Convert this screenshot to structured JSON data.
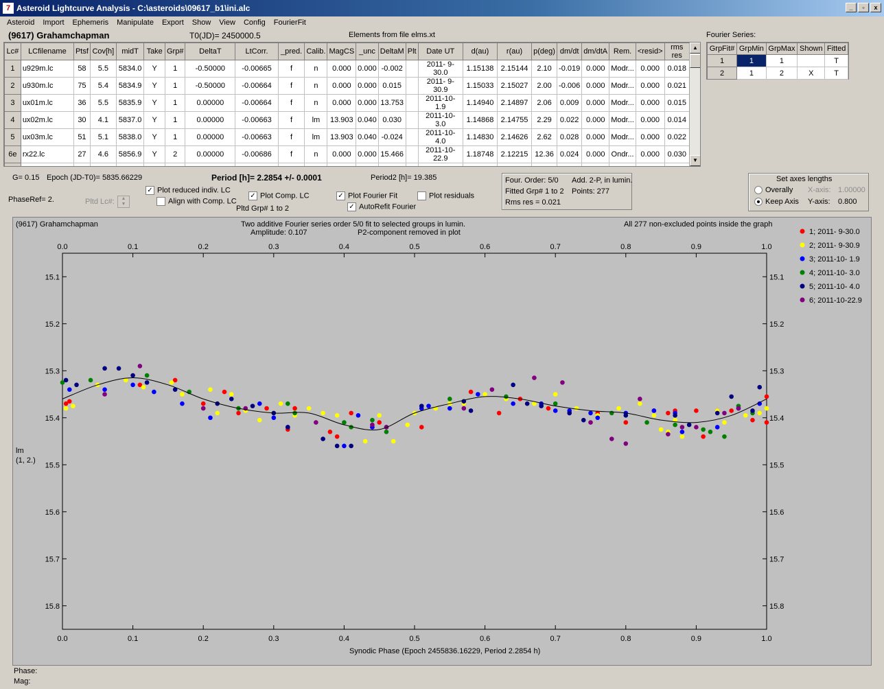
{
  "window": {
    "title": "Asteroid Lightcurve Analysis - C:\\asteroids\\09617_b1\\ini.alc",
    "icon": "app-icon",
    "buttons": [
      "_",
      "▫",
      "x"
    ]
  },
  "menu": [
    "Asteroid",
    "Import",
    "Ephemeris",
    "Manipulate",
    "Export",
    "Show",
    "View",
    "Config",
    "FourierFit"
  ],
  "header": {
    "asteroid": "(9617) Grahamchapman",
    "t0": "T0(JD)= 2450000.5",
    "elements": "Elements from file elms.xt"
  },
  "lc_table": {
    "columns": [
      "Lc#",
      "LCfilename",
      "Ptsf",
      "Cov[h]",
      "midT",
      "Take",
      "Grp#",
      "DeltaT",
      "LtCorr.",
      "_pred.",
      "Calib.",
      "MagCS",
      "_unc",
      "DeltaM",
      "Plt",
      "Date UT",
      "d(au)",
      "r(au)",
      "p(deg)",
      "dm/dt",
      "dm/dtA",
      "Rem.",
      "<resid>",
      "rms res"
    ],
    "rows": [
      [
        "1",
        "u929m.lc",
        "58",
        "5.5",
        "5834.0",
        "Y",
        "1",
        "-0.50000",
        "-0.00665",
        "f",
        "n",
        "0.000",
        "0.000",
        "-0.002",
        "",
        "2011- 9-30.0",
        "1.15138",
        "2.15144",
        "2.10",
        "-0.019",
        "0.000",
        "Modr...",
        "0.000",
        "0.018"
      ],
      [
        "2",
        "u930m.lc",
        "75",
        "5.4",
        "5834.9",
        "Y",
        "1",
        "-0.50000",
        "-0.00664",
        "f",
        "n",
        "0.000",
        "0.000",
        "0.015",
        "",
        "2011- 9-30.9",
        "1.15033",
        "2.15027",
        "2.00",
        "-0.006",
        "0.000",
        "Modr...",
        "0.000",
        "0.021"
      ],
      [
        "3",
        "ux01m.lc",
        "36",
        "5.5",
        "5835.9",
        "Y",
        "1",
        "0.00000",
        "-0.00664",
        "f",
        "n",
        "0.000",
        "0.000",
        "13.753",
        "",
        "2011-10- 1.9",
        "1.14940",
        "2.14897",
        "2.06",
        "0.009",
        "0.000",
        "Modr...",
        "0.000",
        "0.015"
      ],
      [
        "4",
        "ux02m.lc",
        "30",
        "4.1",
        "5837.0",
        "Y",
        "1",
        "0.00000",
        "-0.00663",
        "f",
        "lm",
        "13.903",
        "0.040",
        "0.030",
        "",
        "2011-10- 3.0",
        "1.14868",
        "2.14755",
        "2.29",
        "0.022",
        "0.000",
        "Modr...",
        "0.000",
        "0.014"
      ],
      [
        "5",
        "ux03m.lc",
        "51",
        "5.1",
        "5838.0",
        "Y",
        "1",
        "0.00000",
        "-0.00663",
        "f",
        "lm",
        "13.903",
        "0.040",
        "-0.024",
        "",
        "2011-10- 4.0",
        "1.14830",
        "2.14626",
        "2.62",
        "0.028",
        "0.000",
        "Modr...",
        "0.000",
        "0.022"
      ],
      [
        "6e",
        "rx22.lc",
        "27",
        "4.6",
        "5856.9",
        "Y",
        "2",
        "0.00000",
        "-0.00686",
        "f",
        "n",
        "0.000",
        "0.000",
        "15.466",
        "",
        "2011-10-22.9",
        "1.18748",
        "2.12215",
        "12.36",
        "0.024",
        "0.000",
        "Ondr...",
        "0.000",
        "0.030"
      ]
    ]
  },
  "fourier": {
    "label": "Fourier Series:",
    "columns": [
      "GrpFit#",
      "GrpMin",
      "GrpMax",
      "Shown",
      "Fitted"
    ],
    "rows": [
      [
        "1",
        "1",
        "1",
        "",
        "T"
      ],
      [
        "2",
        "1",
        "2",
        "X",
        "T"
      ]
    ]
  },
  "info": {
    "g": "G= 0.15",
    "epoch": "Epoch (JD-T0)= 5835.66229",
    "period": "Period [h]= 2.2854 +/- 0.0001",
    "period2": "Period2 [h]= 19.385",
    "phaseref": "PhaseRef= 2.",
    "pltd_lc": "Pltd Lc#:",
    "pltd_grp": "Pltd Grp#  1   to   2"
  },
  "checks": {
    "plot_reduced": {
      "label": "Plot reduced indiv. LC",
      "checked": true
    },
    "align_comp": {
      "label": "Align with Comp. LC",
      "checked": false
    },
    "plot_comp": {
      "label": "Plot Comp. LC",
      "checked": true
    },
    "plot_fourier": {
      "label": "Plot Fourier Fit",
      "checked": true
    },
    "autorefit": {
      "label": "AutoRefit Fourier",
      "checked": true
    },
    "plot_resid": {
      "label": "Plot residuals",
      "checked": false
    }
  },
  "fitinfo": {
    "l1": "Four. Order:  5/0",
    "l1b": "Add. 2-P, in lumin.",
    "l2": "Fitted Grp# 1 to 2",
    "l2b": "Points: 277",
    "l3": "Rms res     = 0.021"
  },
  "axes_box": {
    "title": "Set axes lengths",
    "overally": "Overally",
    "keep": "Keep Axis",
    "xaxis": "X-axis:",
    "xval": "1.00000",
    "yaxis": "Y-axis:",
    "yval": "0.800"
  },
  "plot": {
    "name": "(9617) Grahamchapman",
    "desc1": "Two additive Fourier series order 5/0 fit to selected groups in lumin.",
    "amplitude": "Amplitude: 0.107",
    "p2": "P2-component removed in plot",
    "allpoints": "All 277 non-excluded points inside the graph",
    "ylabel1": "lm",
    "ylabel2": "(1, 2.)",
    "xlabel": "Synodic Phase (Epoch 2455836.16229, Period 2.2854 h)"
  },
  "chart_data": {
    "type": "scatter",
    "xlim": [
      0,
      1
    ],
    "ylim": [
      15.05,
      15.85
    ],
    "y_inverted": true,
    "xticks": [
      "0.0",
      "0.1",
      "0.2",
      "0.3",
      "0.4",
      "0.5",
      "0.6",
      "0.7",
      "0.8",
      "0.9",
      "1.0"
    ],
    "yticks": [
      "15.1",
      "15.2",
      "15.3",
      "15.4",
      "15.5",
      "15.6",
      "15.7",
      "15.8"
    ],
    "legend": [
      {
        "label": "1; 2011- 9-30.0",
        "color": "#ff0000"
      },
      {
        "label": "2; 2011- 9-30.9",
        "color": "#ffff00"
      },
      {
        "label": "3; 2011-10- 1.9",
        "color": "#0000ff"
      },
      {
        "label": "4; 2011-10- 3.0",
        "color": "#008000"
      },
      {
        "label": "5; 2011-10- 4.0",
        "color": "#000080"
      },
      {
        "label": "6; 2011-10-22.9",
        "color": "#800080"
      }
    ],
    "fit_curve": [
      [
        0.0,
        15.36
      ],
      [
        0.05,
        15.33
      ],
      [
        0.1,
        15.315
      ],
      [
        0.15,
        15.33
      ],
      [
        0.2,
        15.36
      ],
      [
        0.25,
        15.38
      ],
      [
        0.3,
        15.39
      ],
      [
        0.35,
        15.39
      ],
      [
        0.4,
        15.415
      ],
      [
        0.45,
        15.425
      ],
      [
        0.5,
        15.39
      ],
      [
        0.55,
        15.37
      ],
      [
        0.6,
        15.355
      ],
      [
        0.65,
        15.36
      ],
      [
        0.7,
        15.375
      ],
      [
        0.75,
        15.385
      ],
      [
        0.8,
        15.39
      ],
      [
        0.85,
        15.405
      ],
      [
        0.9,
        15.41
      ],
      [
        0.95,
        15.395
      ],
      [
        1.0,
        15.36
      ]
    ],
    "series": [
      {
        "name": "1; 2011- 9-30.0",
        "points": [
          [
            0.005,
            15.37
          ],
          [
            0.01,
            15.365
          ],
          [
            0.11,
            15.33
          ],
          [
            0.16,
            15.32
          ],
          [
            0.2,
            15.37
          ],
          [
            0.23,
            15.345
          ],
          [
            0.25,
            15.39
          ],
          [
            0.29,
            15.38
          ],
          [
            0.32,
            15.425
          ],
          [
            0.33,
            15.38
          ],
          [
            0.38,
            15.43
          ],
          [
            0.39,
            15.44
          ],
          [
            0.41,
            15.39
          ],
          [
            0.44,
            15.42
          ],
          [
            0.45,
            15.41
          ],
          [
            0.51,
            15.42
          ],
          [
            0.57,
            15.37
          ],
          [
            0.58,
            15.345
          ],
          [
            0.62,
            15.39
          ],
          [
            0.65,
            15.36
          ],
          [
            0.69,
            15.38
          ],
          [
            0.72,
            15.39
          ],
          [
            0.76,
            15.39
          ],
          [
            0.8,
            15.41
          ],
          [
            0.84,
            15.385
          ],
          [
            0.86,
            15.39
          ],
          [
            0.87,
            15.385
          ],
          [
            0.9,
            15.385
          ],
          [
            0.91,
            15.44
          ],
          [
            0.93,
            15.385
          ],
          [
            0.95,
            15.385
          ],
          [
            0.98,
            15.405
          ],
          [
            1.0,
            15.41
          ],
          [
            1.0,
            15.355
          ]
        ]
      },
      {
        "name": "2; 2011- 9-30.9",
        "points": [
          [
            0.005,
            15.38
          ],
          [
            0.015,
            15.375
          ],
          [
            0.05,
            15.33
          ],
          [
            0.09,
            15.32
          ],
          [
            0.115,
            15.335
          ],
          [
            0.155,
            15.325
          ],
          [
            0.17,
            15.35
          ],
          [
            0.21,
            15.34
          ],
          [
            0.22,
            15.39
          ],
          [
            0.24,
            15.35
          ],
          [
            0.26,
            15.385
          ],
          [
            0.28,
            15.405
          ],
          [
            0.31,
            15.37
          ],
          [
            0.33,
            15.395
          ],
          [
            0.35,
            15.38
          ],
          [
            0.37,
            15.39
          ],
          [
            0.39,
            15.395
          ],
          [
            0.41,
            15.42
          ],
          [
            0.43,
            15.45
          ],
          [
            0.45,
            15.395
          ],
          [
            0.47,
            15.45
          ],
          [
            0.49,
            15.415
          ],
          [
            0.5,
            15.39
          ],
          [
            0.53,
            15.38
          ],
          [
            0.55,
            15.37
          ],
          [
            0.57,
            15.37
          ],
          [
            0.6,
            15.35
          ],
          [
            0.63,
            15.36
          ],
          [
            0.67,
            15.37
          ],
          [
            0.7,
            15.35
          ],
          [
            0.73,
            15.38
          ],
          [
            0.76,
            15.395
          ],
          [
            0.79,
            15.38
          ],
          [
            0.82,
            15.37
          ],
          [
            0.84,
            15.395
          ],
          [
            0.85,
            15.425
          ],
          [
            0.86,
            15.43
          ],
          [
            0.87,
            15.405
          ],
          [
            0.88,
            15.44
          ],
          [
            0.9,
            15.42
          ],
          [
            0.93,
            15.385
          ],
          [
            0.94,
            15.41
          ],
          [
            0.97,
            15.395
          ],
          [
            0.99,
            15.39
          ],
          [
            1.0,
            15.38
          ]
        ]
      },
      {
        "name": "3; 2011-10- 1.9",
        "points": [
          [
            0.01,
            15.34
          ],
          [
            0.06,
            15.34
          ],
          [
            0.1,
            15.33
          ],
          [
            0.13,
            15.345
          ],
          [
            0.17,
            15.37
          ],
          [
            0.21,
            15.4
          ],
          [
            0.28,
            15.37
          ],
          [
            0.3,
            15.4
          ],
          [
            0.32,
            15.42
          ],
          [
            0.4,
            15.46
          ],
          [
            0.42,
            15.395
          ],
          [
            0.44,
            15.42
          ],
          [
            0.51,
            15.38
          ],
          [
            0.52,
            15.375
          ],
          [
            0.55,
            15.38
          ],
          [
            0.59,
            15.35
          ],
          [
            0.64,
            15.37
          ],
          [
            0.68,
            15.37
          ],
          [
            0.7,
            15.385
          ],
          [
            0.72,
            15.385
          ],
          [
            0.75,
            15.39
          ],
          [
            0.76,
            15.4
          ],
          [
            0.8,
            15.39
          ],
          [
            0.84,
            15.385
          ],
          [
            0.87,
            15.39
          ],
          [
            0.88,
            15.43
          ],
          [
            0.93,
            15.42
          ],
          [
            0.96,
            15.38
          ],
          [
            0.99,
            15.37
          ]
        ]
      },
      {
        "name": "4; 2011-10- 3.0",
        "points": [
          [
            0.0,
            15.325
          ],
          [
            0.04,
            15.32
          ],
          [
            0.12,
            15.31
          ],
          [
            0.18,
            15.345
          ],
          [
            0.25,
            15.38
          ],
          [
            0.32,
            15.37
          ],
          [
            0.33,
            15.39
          ],
          [
            0.4,
            15.41
          ],
          [
            0.41,
            15.42
          ],
          [
            0.44,
            15.405
          ],
          [
            0.46,
            15.43
          ],
          [
            0.55,
            15.36
          ],
          [
            0.63,
            15.355
          ],
          [
            0.7,
            15.37
          ],
          [
            0.78,
            15.39
          ],
          [
            0.83,
            15.41
          ],
          [
            0.87,
            15.415
          ],
          [
            0.91,
            15.425
          ],
          [
            0.92,
            15.43
          ],
          [
            0.94,
            15.44
          ],
          [
            0.96,
            15.375
          ],
          [
            0.98,
            15.39
          ]
        ]
      },
      {
        "name": "5; 2011-10- 4.0",
        "points": [
          [
            0.005,
            15.32
          ],
          [
            0.02,
            15.33
          ],
          [
            0.06,
            15.295
          ],
          [
            0.08,
            15.295
          ],
          [
            0.1,
            15.31
          ],
          [
            0.12,
            15.325
          ],
          [
            0.16,
            15.34
          ],
          [
            0.22,
            15.37
          ],
          [
            0.24,
            15.36
          ],
          [
            0.27,
            15.375
          ],
          [
            0.3,
            15.39
          ],
          [
            0.32,
            15.42
          ],
          [
            0.37,
            15.445
          ],
          [
            0.39,
            15.46
          ],
          [
            0.41,
            15.46
          ],
          [
            0.46,
            15.42
          ],
          [
            0.51,
            15.375
          ],
          [
            0.57,
            15.365
          ],
          [
            0.58,
            15.385
          ],
          [
            0.64,
            15.33
          ],
          [
            0.66,
            15.37
          ],
          [
            0.68,
            15.375
          ],
          [
            0.72,
            15.39
          ],
          [
            0.74,
            15.405
          ],
          [
            0.8,
            15.395
          ],
          [
            0.87,
            15.395
          ],
          [
            0.89,
            15.415
          ],
          [
            0.93,
            15.39
          ],
          [
            0.95,
            15.355
          ],
          [
            0.98,
            15.385
          ],
          [
            0.99,
            15.335
          ]
        ]
      },
      {
        "name": "6; 2011-10-22.9",
        "points": [
          [
            0.06,
            15.35
          ],
          [
            0.11,
            15.29
          ],
          [
            0.2,
            15.38
          ],
          [
            0.26,
            15.38
          ],
          [
            0.36,
            15.41
          ],
          [
            0.44,
            15.415
          ],
          [
            0.46,
            15.42
          ],
          [
            0.57,
            15.38
          ],
          [
            0.61,
            15.34
          ],
          [
            0.67,
            15.315
          ],
          [
            0.71,
            15.325
          ],
          [
            0.75,
            15.41
          ],
          [
            0.78,
            15.445
          ],
          [
            0.8,
            15.455
          ],
          [
            0.82,
            15.36
          ],
          [
            0.86,
            15.435
          ],
          [
            0.88,
            15.42
          ],
          [
            0.9,
            15.42
          ],
          [
            0.94,
            15.39
          ],
          [
            0.96,
            15.38
          ]
        ]
      }
    ]
  }
}
